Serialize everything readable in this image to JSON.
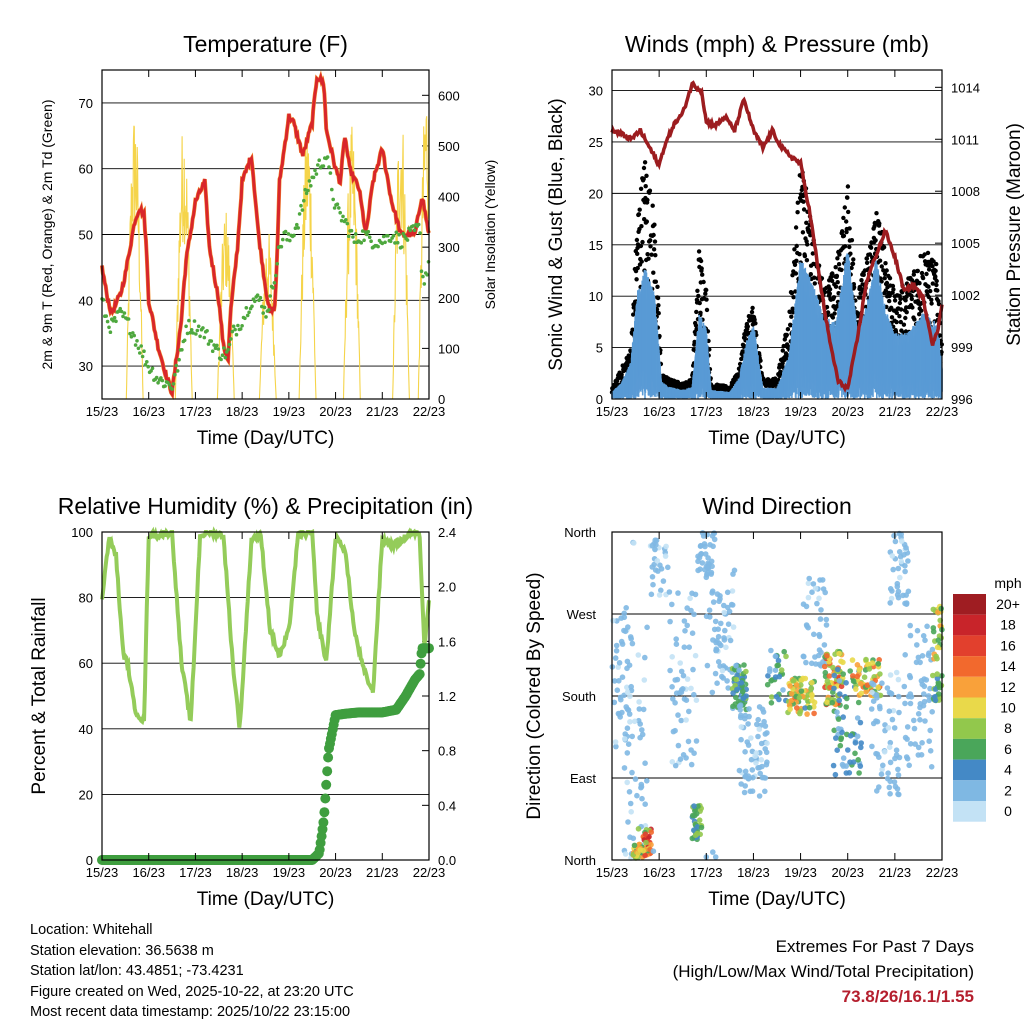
{
  "chart_data": [
    {
      "type": "line",
      "title": "Temperature (F)",
      "xlabel": "Time (Day/UTC)",
      "ylabel": "2m & 9m T (Red, Orange) & 2m Td (Green)",
      "ylabel_right": "Solar Insolation (Yellow)",
      "ylim": [
        25,
        75
      ],
      "ylim_right": [
        0,
        650
      ],
      "yticks": [
        30,
        40,
        50,
        60,
        70
      ],
      "yticks_right": [
        0,
        100,
        200,
        300,
        400,
        500,
        600
      ],
      "x_ticks": [
        "15/23",
        "16/23",
        "17/23",
        "18/23",
        "19/23",
        "20/23",
        "21/23",
        "22/23"
      ],
      "series": [
        {
          "name": "2m Temperature",
          "color": "#d8262b",
          "x": [
            0,
            0.1,
            0.2,
            0.4,
            0.5,
            0.6,
            0.7,
            0.8,
            0.9,
            0.95,
            1.0,
            1.2,
            1.4,
            1.5,
            1.7,
            1.75,
            1.8,
            2.0,
            2.2,
            2.3,
            2.5,
            2.6,
            2.7,
            2.75,
            2.9,
            3.0,
            3.2,
            3.35,
            3.5,
            3.6,
            3.7,
            3.75,
            3.8,
            4.0,
            4.1,
            4.3,
            4.5,
            4.6,
            4.75,
            4.8,
            5.0,
            5.1,
            5.2,
            5.3,
            5.5,
            5.65,
            5.8,
            6.0,
            6.2,
            6.4,
            6.6,
            6.7,
            6.85,
            7.0
          ],
          "y": [
            45,
            41,
            38,
            41,
            44,
            48,
            52,
            54,
            53,
            48,
            40,
            33,
            28,
            26,
            37,
            42,
            46,
            55,
            58,
            48,
            40,
            33,
            31,
            38,
            48,
            58,
            62,
            50,
            42,
            38,
            39,
            47,
            58,
            68,
            67,
            62,
            67,
            74,
            73,
            66,
            60,
            58,
            65,
            60,
            57,
            50,
            58,
            63,
            55,
            50,
            50,
            50,
            56,
            50
          ]
        },
        {
          "name": "2m Dewpoint",
          "color": "#4ea83e",
          "x": [
            0,
            0.1,
            0.2,
            0.4,
            0.6,
            0.8,
            1.0,
            1.2,
            1.5,
            1.7,
            1.8,
            2.0,
            2.2,
            2.5,
            2.7,
            2.8,
            3.0,
            3.2,
            3.4,
            3.5,
            3.6,
            3.8,
            3.9,
            4.0,
            4.2,
            4.4,
            4.6,
            4.8,
            4.9,
            5.0,
            5.2,
            5.4,
            5.6,
            5.8,
            6.0,
            6.2,
            6.4,
            6.6,
            6.8,
            6.85,
            6.9,
            7.0
          ],
          "y": [
            40,
            37,
            36,
            38,
            36,
            33,
            30,
            28,
            27,
            32,
            36,
            36,
            35,
            32,
            32,
            35,
            37,
            40,
            40,
            38,
            40,
            48,
            50,
            49,
            52,
            57,
            60,
            62,
            58,
            54,
            52,
            49,
            50,
            49,
            49,
            50,
            49,
            50,
            51,
            44,
            43,
            46
          ]
        }
      ]
    },
    {
      "type": "scatter",
      "title": "Winds (mph) & Pressure (mb)",
      "xlabel": "Time (Day/UTC)",
      "ylabel": "Sonic Wind & Gust (Blue, Black)",
      "ylabel_right": "Station Pressure (Maroon)",
      "ylim": [
        0,
        32
      ],
      "ylim_right": [
        996,
        1015
      ],
      "yticks": [
        0,
        5,
        10,
        15,
        20,
        25,
        30
      ],
      "yticks_right": [
        996,
        999,
        1002,
        1005,
        1008,
        1011,
        1014
      ],
      "x_ticks": [
        "15/23",
        "16/23",
        "17/23",
        "18/23",
        "19/23",
        "20/23",
        "21/23",
        "22/23"
      ],
      "series": [
        {
          "name": "Station Pressure",
          "color": "#9c1c1f",
          "x": [
            0,
            0.2,
            0.4,
            0.6,
            0.8,
            1.0,
            1.1,
            1.3,
            1.5,
            1.7,
            1.9,
            2.0,
            2.2,
            2.4,
            2.6,
            2.8,
            3.0,
            3.2,
            3.4,
            3.6,
            3.8,
            4.0,
            4.2,
            4.4,
            4.6,
            4.8,
            5.0,
            5.2,
            5.4,
            5.6,
            5.8,
            6.0,
            6.2,
            6.4,
            6.6,
            6.8,
            6.9,
            7.0
          ],
          "y": [
            1011.5,
            1011.3,
            1011,
            1011.5,
            1010.5,
            1009.5,
            1010.5,
            1011.8,
            1012.5,
            1014.2,
            1013.8,
            1012,
            1011.8,
            1012.3,
            1011.5,
            1013.3,
            1011.5,
            1010.5,
            1011.5,
            1010.5,
            1010,
            1009.6,
            1006.7,
            1003,
            999.6,
            997,
            996.6,
            999.4,
            1002.8,
            1004.3,
            1005.7,
            1004.2,
            1002.2,
            1002.6,
            1001.8,
            999.2,
            999.8,
            1001.5
          ]
        },
        {
          "name": "Sonic Wind",
          "color": "#5a9bd5",
          "envelope_x": [
            0,
            0.2,
            0.4,
            0.55,
            0.7,
            0.9,
            1.05,
            1.2,
            1.5,
            1.7,
            1.85,
            2.0,
            2.1,
            2.5,
            2.7,
            2.85,
            3.0,
            3.2,
            3.5,
            3.75,
            4.0,
            4.1,
            4.3,
            4.5,
            4.75,
            5.0,
            5.2,
            5.4,
            5.6,
            5.8,
            6.0,
            6.3,
            6.6,
            6.9,
            7.0
          ],
          "envelope_y": [
            0.7,
            1.6,
            3.6,
            10.8,
            12.7,
            10.4,
            1.7,
            1.2,
            0.9,
            1.2,
            8.4,
            7.0,
            0.9,
            0.7,
            2.1,
            5.6,
            7.3,
            1.1,
            1.1,
            4.2,
            13.8,
            12.9,
            10.7,
            8.0,
            7.6,
            14.9,
            6.9,
            9.1,
            13.8,
            8.8,
            6.4,
            6.6,
            8.4,
            7.4,
            3.4
          ]
        },
        {
          "name": "Gust",
          "color": "#000000",
          "envelope_x": [
            0,
            0.2,
            0.4,
            0.55,
            0.7,
            0.9,
            1.05,
            1.2,
            1.5,
            1.7,
            1.85,
            2.0,
            2.1,
            2.5,
            2.7,
            2.85,
            3.0,
            3.2,
            3.5,
            3.75,
            4.0,
            4.1,
            4.3,
            4.5,
            4.75,
            5.0,
            5.2,
            5.4,
            5.6,
            5.8,
            6.0,
            6.3,
            6.6,
            6.9,
            7.0
          ],
          "envelope_y": [
            1.0,
            3.0,
            5.0,
            19.0,
            24.0,
            18.0,
            2.5,
            2.0,
            1.5,
            2.0,
            15.0,
            11.0,
            1.5,
            1.2,
            3.0,
            8.0,
            9.0,
            2.0,
            2.0,
            8.0,
            23.0,
            21.0,
            15.0,
            11.0,
            13.0,
            21.0,
            10.0,
            14.0,
            19.0,
            15.0,
            10.0,
            12.0,
            15.0,
            13.0,
            5.0
          ]
        }
      ]
    },
    {
      "type": "line",
      "title": "Relative Humidity (%) & Precipitation (in)",
      "xlabel": "Time (Day/UTC)",
      "ylabel": "Percent & Total Rainfall",
      "ylim": [
        0,
        100
      ],
      "ylim_right": [
        0,
        2.4
      ],
      "yticks": [
        0,
        20,
        40,
        60,
        80,
        100
      ],
      "yticks_right": [
        "0.0",
        "0.4",
        "0.8",
        "1.2",
        "1.6",
        "2.0",
        "2.4"
      ],
      "x_ticks": [
        "15/23",
        "16/23",
        "17/23",
        "18/23",
        "19/23",
        "20/23",
        "21/23",
        "22/23"
      ],
      "series": [
        {
          "name": "Relative Humidity",
          "color": "#94cc5a",
          "x": [
            0,
            0.15,
            0.3,
            0.45,
            0.55,
            0.7,
            0.9,
            1.0,
            1.2,
            1.5,
            1.7,
            1.9,
            2.1,
            2.3,
            2.6,
            2.8,
            2.95,
            3.2,
            3.4,
            3.6,
            3.8,
            4.0,
            4.2,
            4.5,
            4.6,
            4.8,
            5.0,
            5.2,
            5.4,
            5.6,
            5.8,
            6.0,
            6.2,
            6.4,
            6.6,
            6.8,
            6.9,
            7.0
          ],
          "y": [
            80,
            98,
            93,
            63,
            60,
            46,
            42,
            99,
            99,
            100,
            60,
            42,
            99,
            100,
            99,
            60,
            40,
            98,
            99,
            70,
            62,
            70,
            99,
            100,
            75,
            60,
            98,
            95,
            70,
            58,
            51,
            98,
            96,
            97,
            100,
            99,
            65,
            80
          ]
        },
        {
          "name": "Total Precipitation",
          "color": "#3f9e3f",
          "x": [
            0,
            1.0,
            2.0,
            3.0,
            4.0,
            4.5,
            4.65,
            4.75,
            4.85,
            5.0,
            5.2,
            5.5,
            6.0,
            6.3,
            6.5,
            6.7,
            6.8,
            6.85,
            7.0
          ],
          "y": [
            0,
            0,
            0,
            0,
            0,
            0,
            0.05,
            0.3,
            0.8,
            1.06,
            1.07,
            1.08,
            1.08,
            1.1,
            1.2,
            1.32,
            1.36,
            1.55,
            1.55
          ]
        }
      ]
    },
    {
      "type": "scatter",
      "title": "Wind Direction",
      "xlabel": "Time (Day/UTC)",
      "ylabel": "Direction (Colored By Speed)",
      "yticks": [
        "North",
        "East",
        "South",
        "West",
        "North"
      ],
      "x_ticks": [
        "15/23",
        "16/23",
        "17/23",
        "18/23",
        "19/23",
        "20/23",
        "21/23",
        "22/23"
      ],
      "colorbar": {
        "title": "mph",
        "labels": [
          "20+",
          "18",
          "16",
          "14",
          "12",
          "10",
          "8",
          "6",
          "4",
          "2",
          "0"
        ],
        "colors": [
          "#9f1d22",
          "#c8242a",
          "#e2402d",
          "#f2692d",
          "#f9a13a",
          "#e9d94a",
          "#92c84c",
          "#4aa65a",
          "#4489c6",
          "#7fb8e3",
          "#c3e2f5"
        ]
      }
    }
  ],
  "footer": {
    "location": "Location: Whitehall",
    "elevation": "Station elevation: 36.5638 m",
    "latlon": "Station lat/lon: 43.4851; -73.4231",
    "created": "Figure created on Wed, 2025-10-22, at 23:20 UTC",
    "recent": "Most recent data timestamp: 2025/10/22 23:15:00"
  },
  "extremes": {
    "title": "Extremes For Past 7 Days",
    "subtitle": "(High/Low/Max Wind/Total Precipitation)",
    "values": "73.8/26/16.1/1.55"
  }
}
